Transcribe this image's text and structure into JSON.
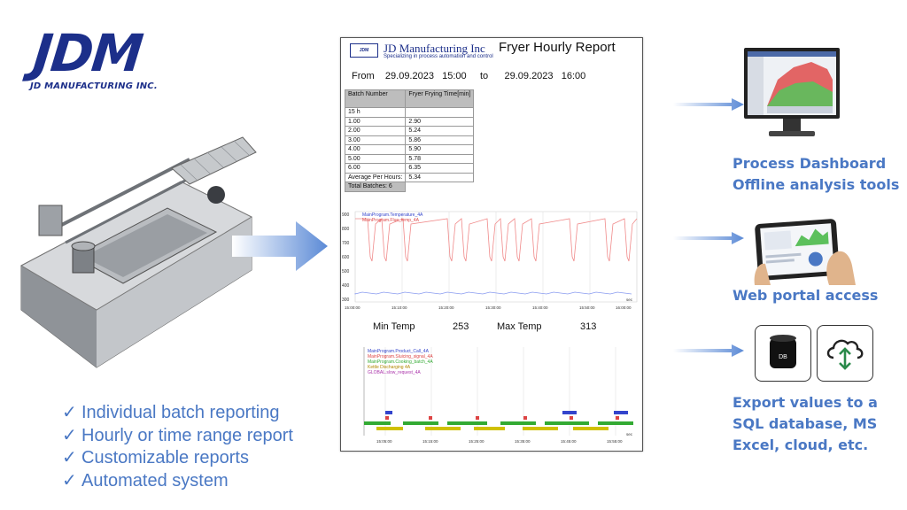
{
  "logo": {
    "mark": "JDM",
    "sub": "JD MANUFACTURING INC."
  },
  "features": [
    "Individual batch reporting",
    "Hourly or time range report",
    "Customizable reports",
    "Automated system"
  ],
  "check_glyph": "✓",
  "report": {
    "company": "JD Manufacturing Inc",
    "tagline": "Specializing in process automation and control",
    "title": "Fryer Hourly Report",
    "from_label": "From",
    "from_date": "29.09.2023",
    "from_time": "15:00",
    "to_label": "to",
    "to_date": "29.09.2023",
    "to_time": "16:00",
    "table": {
      "col1": "Batch Number",
      "col2": "Fryer Frying Time[min]",
      "hour_label": "15 h",
      "rows": [
        [
          "1.00",
          "2.90"
        ],
        [
          "2.00",
          "5.24"
        ],
        [
          "3.00",
          "5.86"
        ],
        [
          "4.00",
          "5.90"
        ],
        [
          "5.00",
          "5.78"
        ],
        [
          "6.00",
          "6.35"
        ]
      ],
      "average_label": "Average Per Hours:",
      "average_value": "5.34",
      "total_label": "Total Batches: 6"
    },
    "chart1": {
      "legend": [
        "MainProgram.Temperature_4A",
        "MainProgram.Flue_temp_4A"
      ],
      "y_ticks": [
        "900",
        "800",
        "700",
        "600",
        "500",
        "400",
        "300"
      ],
      "x_ticks": [
        "15:00:00",
        "15:10:00",
        "15:20:00",
        "15:30:00",
        "15:40:00",
        "15:50:00",
        "16:00:00"
      ],
      "unit": "sec"
    },
    "min_temp_label": "Min Temp",
    "min_temp_value": "253",
    "max_temp_label": "Max Temp",
    "max_temp_value": "313",
    "chart2": {
      "legend": [
        "MainProgram.Product_Call_4A",
        "MainProgram.Sluicing_signal_4A",
        "MainProgram.Cooking_batch_4A",
        "Kettle Discharging 4A",
        "GLOBAL.slow_request_4A"
      ],
      "x_ticks": [
        "15:05:00",
        "15:15:00",
        "15:25:00",
        "15:35:00",
        "15:45:00",
        "15:55:00"
      ],
      "unit": "sec"
    }
  },
  "right": {
    "dashboard_line1": "Process Dashboard",
    "dashboard_line2": "Offline analysis tools",
    "web": "Web portal access",
    "db_icon_text": "DB",
    "export_line1": "Export values to a",
    "export_line2": "SQL database, MS",
    "export_line3": "Excel, cloud, etc."
  },
  "colors": {
    "brand": "#1c2f8a",
    "accent": "#4a78c4",
    "arrow": "#5b8ad6",
    "temp_line": "#f08a8a",
    "flue_line": "#8a9cf0"
  }
}
